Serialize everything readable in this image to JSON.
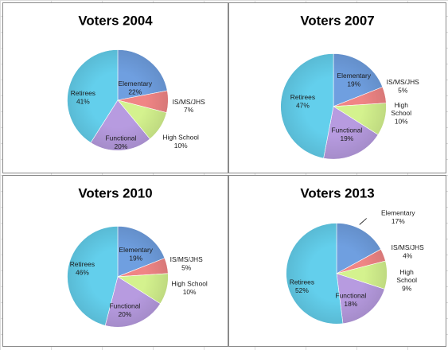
{
  "chart_data": [
    {
      "type": "pie",
      "title": "Voters 2004",
      "categories": [
        "Elementary",
        "IS/MS/JHS",
        "High School",
        "Functional",
        "Retirees"
      ],
      "values": [
        22,
        7,
        10,
        20,
        41
      ],
      "value_labels": [
        "22%",
        "7%",
        "10%",
        "20%",
        "41%"
      ],
      "colors": [
        "#6f9fe0",
        "#f08585",
        "#d4f28e",
        "#b79be0",
        "#63cfec"
      ],
      "data_labels_inside": true
    },
    {
      "type": "pie",
      "title": "Voters 2007",
      "categories": [
        "Elementary",
        "IS/MS/JHS",
        "High School",
        "Functional",
        "Retirees"
      ],
      "values": [
        19,
        5,
        10,
        19,
        47
      ],
      "value_labels": [
        "19%",
        "5%",
        "10%",
        "19%",
        "47%"
      ],
      "colors": [
        "#6f9fe0",
        "#f08585",
        "#d4f28e",
        "#b79be0",
        "#63cfec"
      ],
      "data_labels_inside": true
    },
    {
      "type": "pie",
      "title": "Voters 2010",
      "categories": [
        "Elementary",
        "IS/MS/JHS",
        "High School",
        "Functional",
        "Retirees"
      ],
      "values": [
        19,
        5,
        10,
        20,
        46
      ],
      "value_labels": [
        "19%",
        "5%",
        "10%",
        "20%",
        "46%"
      ],
      "colors": [
        "#6f9fe0",
        "#f08585",
        "#d4f28e",
        "#b79be0",
        "#63cfec"
      ],
      "data_labels_inside": true
    },
    {
      "type": "pie",
      "title": "Voters 2013",
      "categories": [
        "Elementary",
        "IS/MS/JHS",
        "High School",
        "Functional",
        "Retirees"
      ],
      "values": [
        17,
        4,
        9,
        18,
        52
      ],
      "value_labels": [
        "17%",
        "4%",
        "9%",
        "18%",
        "52%"
      ],
      "colors": [
        "#6f9fe0",
        "#f08585",
        "#d4f28e",
        "#b79be0",
        "#63cfec"
      ],
      "data_labels_inside": true,
      "leader_line_on": "Elementary"
    }
  ]
}
